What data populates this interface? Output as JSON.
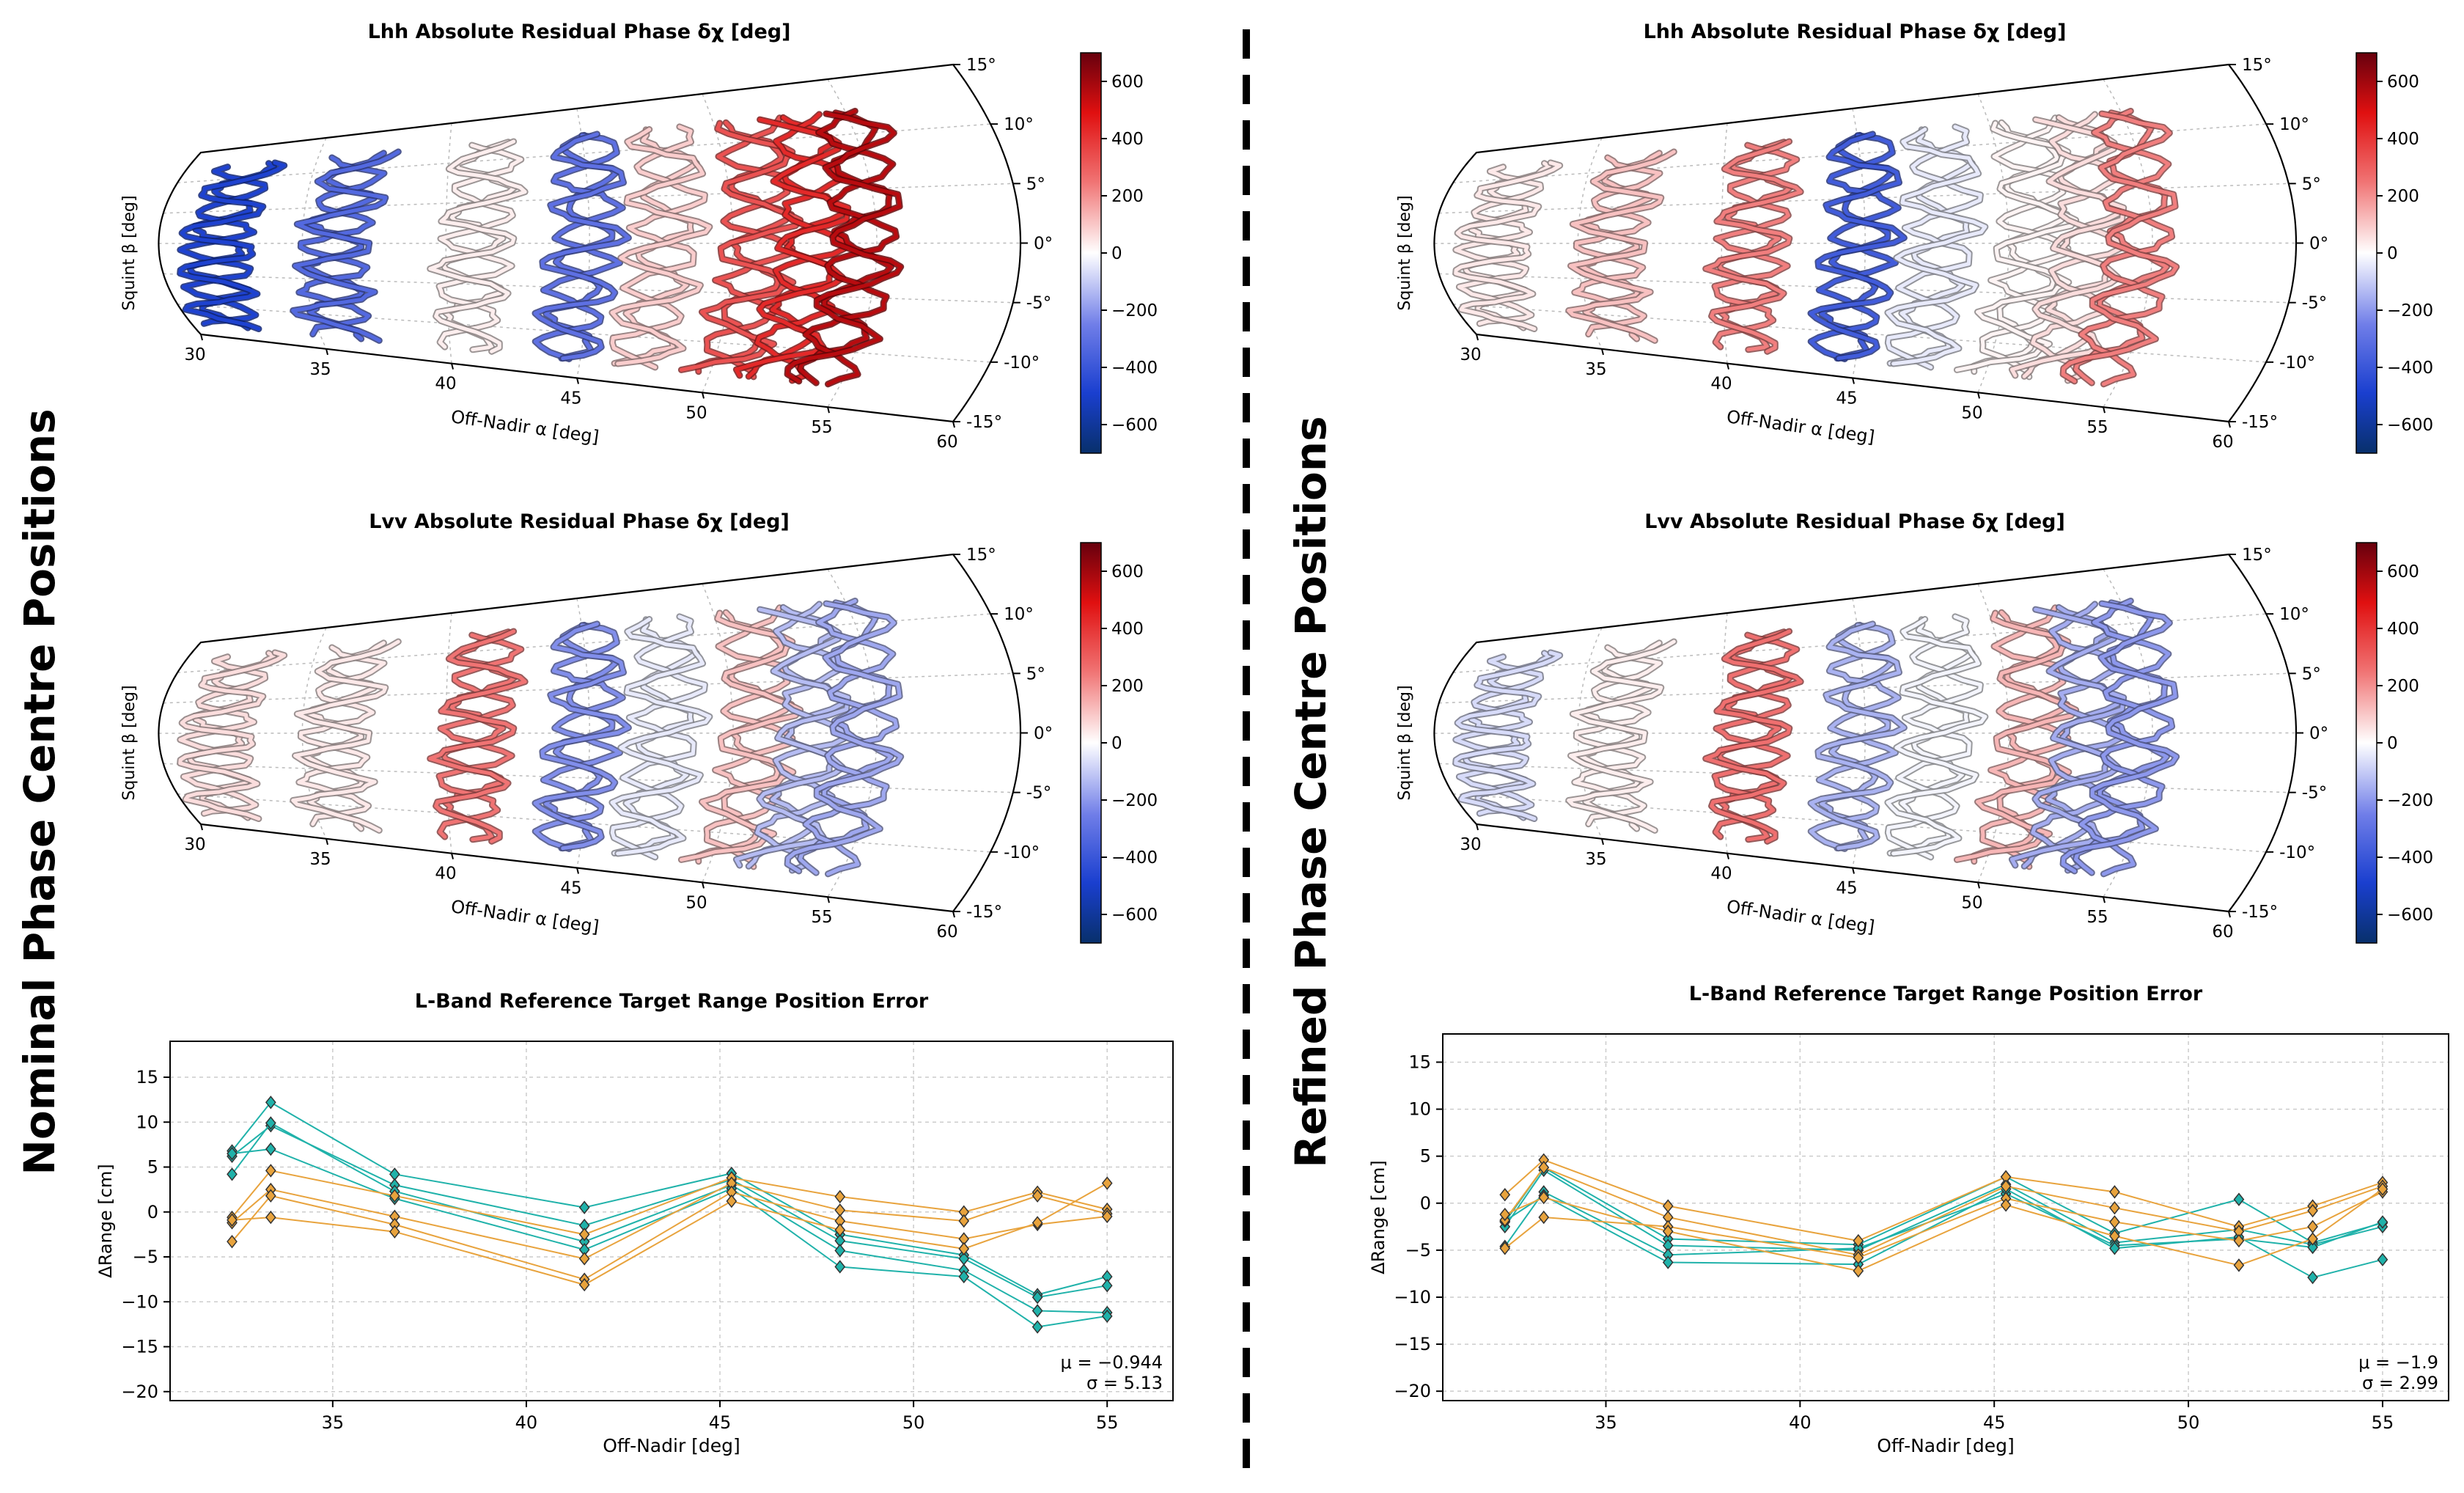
{
  "figure": {
    "left_label": "Nominal Phase Centre Positions",
    "right_label": "Refined Phase Centre Positions",
    "colors": {
      "cmap_low": "#08306b",
      "cmap_mid": "#ffffff",
      "cmap_high": "#67000d",
      "cyan_series": "#20b2aa",
      "orange_series": "#e8a33d",
      "grid": "#cccccc",
      "divider": "#000000"
    }
  },
  "chart_data": [
    {
      "type": "heatmap",
      "id": "nominal_lhh",
      "title": "Lhh Absolute Residual Phase δχ [deg]",
      "xlabel": "Off-Nadir α [deg]",
      "ylabel": "Squint β [deg]",
      "x_ticks": [
        "30",
        "35",
        "40",
        "45",
        "50",
        "55",
        "60"
      ],
      "y_ticks": [
        "15°",
        "10°",
        "5°",
        "0°",
        "-5°",
        "-10°",
        "-15°"
      ],
      "xlim": [
        30,
        60
      ],
      "ylim": [
        -15,
        15
      ],
      "colorbar": {
        "ticks": [
          "600",
          "400",
          "200",
          "0",
          "−200",
          "−400",
          "−600"
        ],
        "range": [
          -700,
          700
        ]
      },
      "tracks": [
        {
          "alpha": 32.5,
          "value": -480
        },
        {
          "alpha": 36.6,
          "value": -330
        },
        {
          "alpha": 41.5,
          "value": 30
        },
        {
          "alpha": 45.3,
          "value": -300
        },
        {
          "alpha": 48.1,
          "value": 90
        },
        {
          "alpha": 51.3,
          "value": 330
        },
        {
          "alpha": 53.2,
          "value": 430
        },
        {
          "alpha": 55.0,
          "value": 560
        }
      ]
    },
    {
      "type": "heatmap",
      "id": "nominal_lvv",
      "title": "Lvv Absolute Residual Phase δχ [deg]",
      "xlabel": "Off-Nadir α [deg]",
      "ylabel": "Squint β [deg]",
      "x_ticks": [
        "30",
        "35",
        "40",
        "45",
        "50",
        "55",
        "60"
      ],
      "y_ticks": [
        "15°",
        "10°",
        "5°",
        "0°",
        "-5°",
        "-10°",
        "-15°"
      ],
      "xlim": [
        30,
        60
      ],
      "ylim": [
        -15,
        15
      ],
      "colorbar": {
        "ticks": [
          "600",
          "400",
          "200",
          "0",
          "−200",
          "−400",
          "−600"
        ],
        "range": [
          -700,
          700
        ]
      },
      "tracks": [
        {
          "alpha": 32.5,
          "value": 60
        },
        {
          "alpha": 36.6,
          "value": 40
        },
        {
          "alpha": 41.5,
          "value": 250
        },
        {
          "alpha": 45.3,
          "value": -220
        },
        {
          "alpha": 48.1,
          "value": -40
        },
        {
          "alpha": 51.3,
          "value": 110
        },
        {
          "alpha": 53.2,
          "value": -130
        },
        {
          "alpha": 55.0,
          "value": -170
        }
      ]
    },
    {
      "type": "heatmap",
      "id": "refined_lhh",
      "title": "Lhh Absolute Residual Phase δχ [deg]",
      "xlabel": "Off-Nadir α [deg]",
      "ylabel": "Squint β [deg]",
      "x_ticks": [
        "30",
        "35",
        "40",
        "45",
        "50",
        "55",
        "60"
      ],
      "y_ticks": [
        "15°",
        "10°",
        "5°",
        "0°",
        "-5°",
        "-10°",
        "-15°"
      ],
      "xlim": [
        30,
        60
      ],
      "ylim": [
        -15,
        15
      ],
      "colorbar": {
        "ticks": [
          "600",
          "400",
          "200",
          "0",
          "−200",
          "−400",
          "−600"
        ],
        "range": [
          -700,
          700
        ]
      },
      "tracks": [
        {
          "alpha": 32.5,
          "value": 40
        },
        {
          "alpha": 36.6,
          "value": 110
        },
        {
          "alpha": 41.5,
          "value": 230
        },
        {
          "alpha": 45.3,
          "value": -380
        },
        {
          "alpha": 48.1,
          "value": -40
        },
        {
          "alpha": 51.3,
          "value": 20
        },
        {
          "alpha": 53.2,
          "value": 60
        },
        {
          "alpha": 55.0,
          "value": 230
        }
      ]
    },
    {
      "type": "heatmap",
      "id": "refined_lvv",
      "title": "Lvv Absolute Residual Phase δχ [deg]",
      "xlabel": "Off-Nadir α [deg]",
      "ylabel": "Squint β [deg]",
      "x_ticks": [
        "30",
        "35",
        "40",
        "45",
        "50",
        "55",
        "60"
      ],
      "y_ticks": [
        "15°",
        "10°",
        "5°",
        "0°",
        "-5°",
        "-10°",
        "-15°"
      ],
      "xlim": [
        30,
        60
      ],
      "ylim": [
        -15,
        15
      ],
      "colorbar": {
        "ticks": [
          "600",
          "400",
          "200",
          "0",
          "−200",
          "−400",
          "−600"
        ],
        "range": [
          -700,
          700
        ]
      },
      "tracks": [
        {
          "alpha": 32.5,
          "value": -70
        },
        {
          "alpha": 36.6,
          "value": 30
        },
        {
          "alpha": 41.5,
          "value": 260
        },
        {
          "alpha": 45.3,
          "value": -150
        },
        {
          "alpha": 48.1,
          "value": -20
        },
        {
          "alpha": 51.3,
          "value": 130
        },
        {
          "alpha": 53.2,
          "value": -160
        },
        {
          "alpha": 55.0,
          "value": -200
        }
      ]
    },
    {
      "type": "line",
      "id": "nominal_range",
      "title": "L-Band Reference Target Range Position Error",
      "xlabel": "Off-Nadir [deg]",
      "ylabel": "ΔRange [cm]",
      "xlim": [
        30.8,
        56.7
      ],
      "ylim": [
        -21,
        19
      ],
      "x_ticks": [
        35,
        40,
        45,
        50,
        55
      ],
      "y_ticks": [
        15,
        10,
        5,
        0,
        -5,
        -10,
        -15,
        -20
      ],
      "x": [
        32.4,
        33.4,
        36.6,
        41.5,
        45.3,
        48.1,
        51.3,
        53.2,
        55.0
      ],
      "stats": [
        "μ = −0.944",
        "σ = 5.13"
      ],
      "series": [
        {
          "group": "cyan",
          "values": [
            6.8,
            12.2,
            4.2,
            0.5,
            4.3,
            -2.5,
            -4.8,
            -9.2,
            -7.2
          ]
        },
        {
          "group": "cyan",
          "values": [
            6.2,
            9.6,
            3.0,
            -1.5,
            3.6,
            -3.2,
            -5.2,
            -9.5,
            -8.2
          ]
        },
        {
          "group": "cyan",
          "values": [
            4.2,
            9.9,
            2.3,
            -3.3,
            3.0,
            -4.3,
            -6.5,
            -11.0,
            -11.2
          ]
        },
        {
          "group": "cyan",
          "values": [
            6.5,
            7.0,
            1.5,
            -4.2,
            2.6,
            -6.1,
            -7.2,
            -12.8,
            -11.6
          ]
        },
        {
          "group": "orange",
          "values": [
            -0.6,
            4.6,
            1.8,
            -2.5,
            3.8,
            1.7,
            0.0,
            2.2,
            0.3
          ]
        },
        {
          "group": "orange",
          "values": [
            -1.2,
            2.5,
            -0.5,
            -5.2,
            3.2,
            0.2,
            -1.0,
            1.8,
            -0.2
          ]
        },
        {
          "group": "orange",
          "values": [
            -3.3,
            1.8,
            -1.4,
            -7.5,
            2.2,
            -1.0,
            -3.0,
            -1.4,
            -0.5
          ]
        },
        {
          "group": "orange",
          "values": [
            -0.9,
            -0.6,
            -2.2,
            -8.1,
            1.2,
            -2.0,
            -4.1,
            -1.2,
            3.2
          ]
        }
      ]
    },
    {
      "type": "line",
      "id": "refined_range",
      "title": "L-Band Reference Target Range Position Error",
      "xlabel": "Off-Nadir [deg]",
      "ylabel": "ΔRange [cm]",
      "xlim": [
        30.8,
        56.7
      ],
      "ylim": [
        -21,
        18
      ],
      "x_ticks": [
        35,
        40,
        45,
        50,
        55
      ],
      "y_ticks": [
        15,
        10,
        5,
        0,
        -5,
        -10,
        -15,
        -20
      ],
      "x": [
        32.4,
        33.4,
        36.6,
        41.5,
        45.3,
        48.1,
        51.3,
        53.2,
        55.0
      ],
      "stats": [
        "μ = −1.9",
        "σ = 2.99"
      ],
      "series": [
        {
          "group": "cyan",
          "values": [
            -2.0,
            3.8,
            -3.8,
            -4.4,
            2.8,
            -3.2,
            0.4,
            -4.2,
            -2.1
          ]
        },
        {
          "group": "cyan",
          "values": [
            -2.5,
            3.5,
            -4.5,
            -5.0,
            2.0,
            -4.2,
            -2.8,
            -4.4,
            -2.5
          ]
        },
        {
          "group": "cyan",
          "values": [
            -4.6,
            1.2,
            -5.5,
            -4.8,
            1.0,
            -4.5,
            -3.8,
            -4.7,
            -2.0
          ]
        },
        {
          "group": "cyan",
          "values": [
            -1.9,
            0.8,
            -6.3,
            -6.5,
            1.5,
            -4.8,
            -3.6,
            -7.9,
            -6.0
          ]
        },
        {
          "group": "orange",
          "values": [
            0.9,
            4.6,
            -0.3,
            -4.0,
            2.8,
            1.2,
            -2.5,
            -0.3,
            2.2
          ]
        },
        {
          "group": "orange",
          "values": [
            -1.8,
            3.8,
            -1.5,
            -5.5,
            1.8,
            -0.5,
            -3.0,
            -0.8,
            1.8
          ]
        },
        {
          "group": "orange",
          "values": [
            -4.8,
            -1.5,
            -2.5,
            -5.8,
            0.5,
            -2.0,
            -4.0,
            -2.5,
            1.2
          ]
        },
        {
          "group": "orange",
          "values": [
            -1.2,
            0.6,
            -3.0,
            -7.2,
            -0.2,
            -3.5,
            -6.6,
            -3.8,
            1.5
          ]
        }
      ]
    }
  ]
}
